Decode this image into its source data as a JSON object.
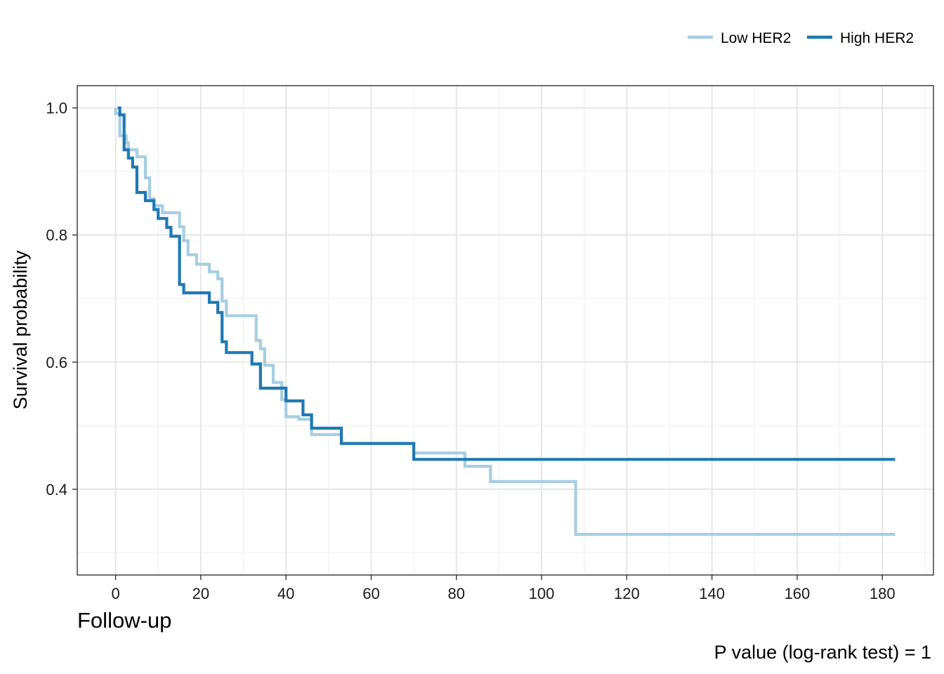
{
  "chart_data": {
    "type": "line",
    "subtype": "step",
    "xlabel": "Follow-up",
    "ylabel": "Survival probability",
    "annotation": "P value (log-rank test) = 1",
    "xlim": [
      -9,
      192
    ],
    "ylim": [
      0.265,
      1.035
    ],
    "x_ticks": [
      0,
      20,
      40,
      60,
      80,
      100,
      120,
      140,
      160,
      180
    ],
    "x_tick_labels": [
      "0",
      "20",
      "40",
      "60",
      "80",
      "100",
      "120",
      "140",
      "160",
      "180"
    ],
    "y_ticks": [
      0.4,
      0.6,
      0.8,
      1.0
    ],
    "y_tick_labels": [
      "0.4",
      "0.6",
      "0.8",
      "1.0"
    ],
    "grid": true,
    "legend_position": "top-right",
    "series": [
      {
        "name": "Low HER2",
        "color": "#a6cee3",
        "points": [
          [
            0,
            1.0
          ],
          [
            0,
            0.991
          ],
          [
            1,
            0.991
          ],
          [
            1,
            0.956
          ],
          [
            2.5,
            0.956
          ],
          [
            2.5,
            0.945
          ],
          [
            3,
            0.945
          ],
          [
            3,
            0.934
          ],
          [
            5,
            0.934
          ],
          [
            5,
            0.923
          ],
          [
            7,
            0.923
          ],
          [
            7,
            0.89
          ],
          [
            8,
            0.89
          ],
          [
            8,
            0.857
          ],
          [
            9,
            0.857
          ],
          [
            9,
            0.846
          ],
          [
            11,
            0.846
          ],
          [
            11,
            0.835
          ],
          [
            15,
            0.835
          ],
          [
            15,
            0.813
          ],
          [
            16,
            0.813
          ],
          [
            16,
            0.791
          ],
          [
            17,
            0.791
          ],
          [
            17,
            0.769
          ],
          [
            19,
            0.769
          ],
          [
            19,
            0.754
          ],
          [
            22,
            0.754
          ],
          [
            22,
            0.742
          ],
          [
            24,
            0.742
          ],
          [
            24,
            0.731
          ],
          [
            25,
            0.731
          ],
          [
            25,
            0.696
          ],
          [
            26,
            0.696
          ],
          [
            26,
            0.673
          ],
          [
            33,
            0.673
          ],
          [
            33,
            0.634
          ],
          [
            34,
            0.634
          ],
          [
            34,
            0.621
          ],
          [
            35,
            0.621
          ],
          [
            35,
            0.595
          ],
          [
            37,
            0.595
          ],
          [
            37,
            0.568
          ],
          [
            39,
            0.568
          ],
          [
            39,
            0.541
          ],
          [
            40,
            0.541
          ],
          [
            40,
            0.514
          ],
          [
            43,
            0.514
          ],
          [
            43,
            0.51
          ],
          [
            46,
            0.51
          ],
          [
            46,
            0.486
          ],
          [
            53,
            0.486
          ],
          [
            53,
            0.472
          ],
          [
            70,
            0.472
          ],
          [
            70,
            0.457
          ],
          [
            82,
            0.457
          ],
          [
            82,
            0.436
          ],
          [
            88,
            0.436
          ],
          [
            88,
            0.412
          ],
          [
            108,
            0.412
          ],
          [
            108,
            0.329
          ],
          [
            183,
            0.329
          ]
        ]
      },
      {
        "name": "High HER2",
        "color": "#1f78b4",
        "points": [
          [
            0.5,
            1.0
          ],
          [
            1,
            1.0
          ],
          [
            1,
            0.989
          ],
          [
            2,
            0.989
          ],
          [
            2,
            0.934
          ],
          [
            3,
            0.934
          ],
          [
            3,
            0.921
          ],
          [
            4,
            0.921
          ],
          [
            4,
            0.907
          ],
          [
            5,
            0.907
          ],
          [
            5,
            0.867
          ],
          [
            7,
            0.867
          ],
          [
            7,
            0.854
          ],
          [
            9,
            0.854
          ],
          [
            9,
            0.84
          ],
          [
            10,
            0.84
          ],
          [
            10,
            0.826
          ],
          [
            12,
            0.826
          ],
          [
            12,
            0.812
          ],
          [
            13,
            0.812
          ],
          [
            13,
            0.798
          ],
          [
            15,
            0.798
          ],
          [
            15,
            0.722
          ],
          [
            16,
            0.722
          ],
          [
            16,
            0.709
          ],
          [
            22,
            0.709
          ],
          [
            22,
            0.694
          ],
          [
            24,
            0.694
          ],
          [
            24,
            0.678
          ],
          [
            25,
            0.678
          ],
          [
            25,
            0.632
          ],
          [
            26,
            0.632
          ],
          [
            26,
            0.615
          ],
          [
            32,
            0.615
          ],
          [
            32,
            0.597
          ],
          [
            34,
            0.597
          ],
          [
            34,
            0.559
          ],
          [
            40,
            0.559
          ],
          [
            40,
            0.539
          ],
          [
            44,
            0.539
          ],
          [
            44,
            0.517
          ],
          [
            46,
            0.517
          ],
          [
            46,
            0.496
          ],
          [
            53,
            0.496
          ],
          [
            53,
            0.472
          ],
          [
            70,
            0.472
          ],
          [
            70,
            0.447
          ],
          [
            183,
            0.447
          ]
        ]
      }
    ]
  }
}
